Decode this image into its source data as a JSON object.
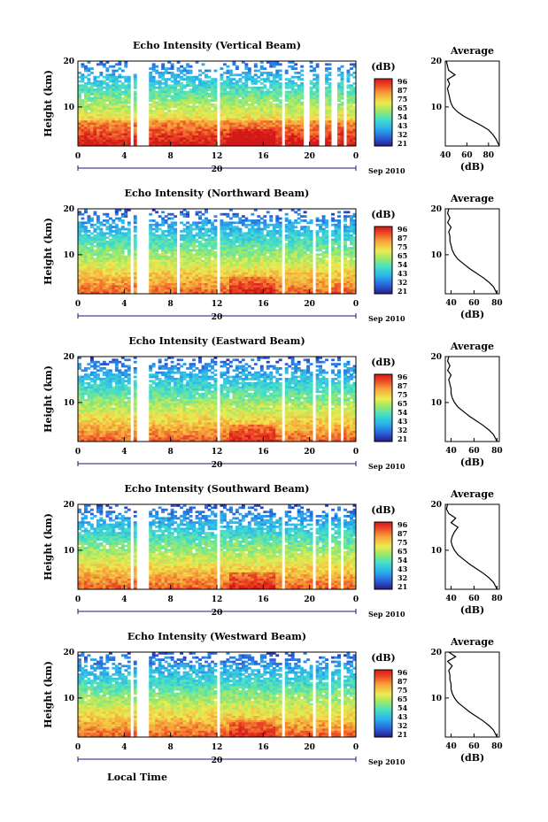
{
  "chart_data": [
    {
      "type": "heatmap",
      "title": "Echo Intensity (Vertical Beam)",
      "ylabel": "Height (km)",
      "xticks": [
        "0",
        "4",
        "8",
        "12",
        "16",
        "20",
        "0"
      ],
      "yticks": [
        "20",
        "10"
      ],
      "date_label": "20",
      "month_label": "Sep 2010",
      "xlim": [
        0,
        24
      ],
      "ylim": [
        1.5,
        20
      ],
      "colorbar": {
        "unit": "(dB)",
        "ticks": [
          "96",
          "87",
          "75",
          "65",
          "54",
          "43",
          "32",
          "21"
        ]
      },
      "gaps_hours": [
        [
          4.5,
          4.9
        ],
        [
          5.2,
          6.1
        ],
        [
          11.9,
          12.3
        ],
        [
          17.6,
          17.9
        ],
        [
          19.6,
          19.9
        ],
        [
          20.9,
          21.2
        ],
        [
          22.0,
          22.3
        ],
        [
          23.0,
          23.2
        ]
      ],
      "average_profile": {
        "title": "Average",
        "xlabel": "(dB)",
        "xticks": [
          "40",
          "60",
          "80"
        ],
        "yticks": [
          "20",
          "10"
        ],
        "xlim": [
          40,
          90
        ],
        "height_km": [
          1.5,
          2,
          3,
          4,
          5,
          6,
          7,
          8,
          9,
          10,
          11,
          12,
          13,
          14,
          15,
          16,
          17,
          18,
          19,
          20
        ],
        "intensity_db": [
          90,
          89,
          87,
          84,
          80,
          73,
          65,
          57,
          51,
          47,
          45,
          44,
          43,
          42,
          44,
          42,
          49,
          43,
          42,
          41
        ]
      }
    },
    {
      "type": "heatmap",
      "title": "Echo Intensity (Northward Beam)",
      "ylabel": "Height (km)",
      "xticks": [
        "0",
        "4",
        "8",
        "12",
        "16",
        "20",
        "0"
      ],
      "yticks": [
        "20",
        "10"
      ],
      "date_label": "20",
      "month_label": "Sep 2010",
      "xlim": [
        0,
        24
      ],
      "ylim": [
        1.5,
        20
      ],
      "colorbar": {
        "unit": "(dB)",
        "ticks": [
          "96",
          "87",
          "75",
          "65",
          "54",
          "43",
          "32",
          "21"
        ]
      },
      "gaps_hours": [
        [
          4.5,
          4.9
        ],
        [
          5.2,
          6.1
        ],
        [
          8.5,
          8.8
        ],
        [
          11.9,
          12.3
        ],
        [
          17.6,
          17.9
        ],
        [
          20.4,
          20.6
        ],
        [
          21.5,
          21.8
        ],
        [
          22.6,
          22.8
        ]
      ],
      "average_profile": {
        "title": "Average",
        "xlabel": "(dB)",
        "xticks": [
          "40",
          "60",
          "80"
        ],
        "yticks": [
          "20",
          "10"
        ],
        "xlim": [
          35,
          82
        ],
        "height_km": [
          1.5,
          2,
          3,
          4,
          5,
          6,
          7,
          8,
          9,
          10,
          11,
          12,
          13,
          14,
          15,
          16,
          17,
          18,
          19,
          20
        ],
        "intensity_db": [
          80,
          79,
          77,
          73,
          68,
          62,
          56,
          51,
          46,
          43,
          41,
          40,
          39,
          39,
          38,
          40,
          37,
          39,
          37,
          38
        ]
      }
    },
    {
      "type": "heatmap",
      "title": "Echo Intensity (Eastward Beam)",
      "ylabel": "Height (km)",
      "xticks": [
        "0",
        "4",
        "8",
        "12",
        "16",
        "20",
        "0"
      ],
      "yticks": [
        "20",
        "10"
      ],
      "date_label": "20",
      "month_label": "Sep 2010",
      "xlim": [
        0,
        24
      ],
      "ylim": [
        1.5,
        20
      ],
      "colorbar": {
        "unit": "(dB)",
        "ticks": [
          "96",
          "87",
          "75",
          "65",
          "54",
          "43",
          "32",
          "21"
        ]
      },
      "gaps_hours": [
        [
          4.5,
          4.9
        ],
        [
          5.2,
          6.1
        ],
        [
          11.9,
          12.3
        ],
        [
          17.6,
          17.9
        ],
        [
          20.4,
          20.6
        ],
        [
          21.5,
          21.8
        ],
        [
          22.6,
          22.8
        ]
      ],
      "average_profile": {
        "title": "Average",
        "xlabel": "(dB)",
        "xticks": [
          "40",
          "60",
          "80"
        ],
        "yticks": [
          "20",
          "10"
        ],
        "xlim": [
          35,
          82
        ],
        "height_km": [
          1.5,
          2,
          3,
          4,
          5,
          6,
          7,
          8,
          9,
          10,
          11,
          12,
          13,
          14,
          15,
          16,
          17,
          18,
          19,
          20
        ],
        "intensity_db": [
          80,
          79,
          77,
          73,
          68,
          62,
          56,
          51,
          46,
          43,
          41,
          40,
          40,
          39,
          38,
          40,
          37,
          39,
          37,
          38
        ]
      }
    },
    {
      "type": "heatmap",
      "title": "Echo Intensity (Southward Beam)",
      "ylabel": "Height (km)",
      "xticks": [
        "0",
        "4",
        "8",
        "12",
        "16",
        "20",
        "0"
      ],
      "yticks": [
        "20",
        "10"
      ],
      "date_label": "20",
      "month_label": "Sep 2010",
      "xlim": [
        0,
        24
      ],
      "ylim": [
        1.5,
        20
      ],
      "colorbar": {
        "unit": "(dB)",
        "ticks": [
          "96",
          "87",
          "75",
          "65",
          "54",
          "43",
          "32",
          "21"
        ]
      },
      "gaps_hours": [
        [
          4.5,
          4.9
        ],
        [
          5.2,
          6.1
        ],
        [
          11.9,
          12.3
        ],
        [
          17.6,
          17.9
        ],
        [
          20.4,
          20.6
        ],
        [
          21.5,
          21.8
        ],
        [
          22.6,
          22.8
        ]
      ],
      "average_profile": {
        "title": "Average",
        "xlabel": "(dB)",
        "xticks": [
          "40",
          "60",
          "80"
        ],
        "yticks": [
          "20",
          "10"
        ],
        "xlim": [
          35,
          82
        ],
        "height_km": [
          1.5,
          2,
          3,
          4,
          5,
          6,
          7,
          8,
          9,
          10,
          11,
          12,
          13,
          14,
          15,
          16,
          17,
          18,
          19,
          20
        ],
        "intensity_db": [
          80,
          79,
          77,
          73,
          68,
          62,
          56,
          51,
          46,
          43,
          41,
          40,
          41,
          43,
          46,
          40,
          44,
          38,
          36,
          37
        ]
      }
    },
    {
      "type": "heatmap",
      "title": "Echo Intensity (Westward Beam)",
      "ylabel": "Height (km)",
      "xticks": [
        "0",
        "4",
        "8",
        "12",
        "16",
        "20",
        "0"
      ],
      "yticks": [
        "20",
        "10"
      ],
      "date_label": "20",
      "month_label": "Sep 2010",
      "xlabel": "Local Time",
      "xlim": [
        0,
        24
      ],
      "ylim": [
        1.5,
        20
      ],
      "colorbar": {
        "unit": "(dB)",
        "ticks": [
          "96",
          "87",
          "75",
          "65",
          "54",
          "43",
          "32",
          "21"
        ]
      },
      "gaps_hours": [
        [
          4.5,
          4.9
        ],
        [
          5.2,
          6.1
        ],
        [
          11.9,
          12.3
        ],
        [
          17.6,
          17.9
        ],
        [
          20.4,
          20.6
        ],
        [
          21.5,
          21.8
        ],
        [
          22.6,
          22.8
        ]
      ],
      "average_profile": {
        "title": "Average",
        "xlabel": "(dB)",
        "xticks": [
          "40",
          "60",
          "80"
        ],
        "yticks": [
          "20",
          "10"
        ],
        "xlim": [
          35,
          82
        ],
        "height_km": [
          1.5,
          2,
          3,
          4,
          5,
          6,
          7,
          8,
          9,
          10,
          11,
          12,
          13,
          14,
          15,
          16,
          17,
          18,
          19,
          20
        ],
        "intensity_db": [
          80,
          79,
          77,
          73,
          68,
          62,
          56,
          51,
          46,
          43,
          41,
          40,
          40,
          39,
          39,
          38,
          41,
          37,
          44,
          38
        ]
      }
    }
  ]
}
